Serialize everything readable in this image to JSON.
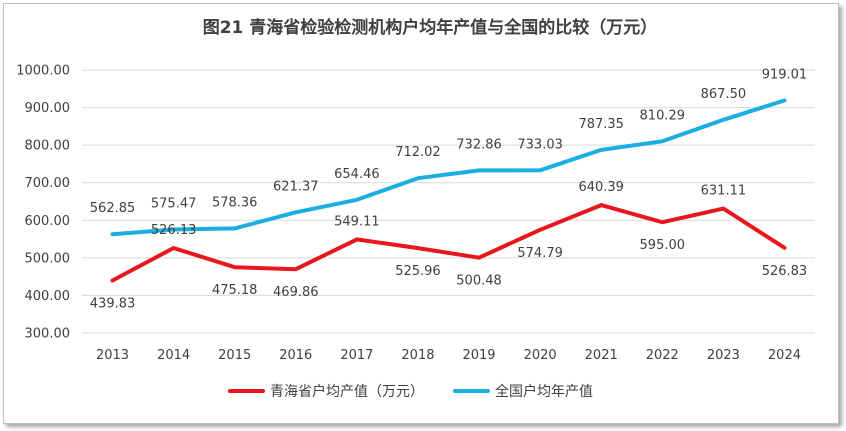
{
  "chart_data": {
    "type": "line",
    "title": "图21 青海省检验检测机构户均年产值与全国的比较（万元）",
    "categories": [
      "2013",
      "2014",
      "2015",
      "2016",
      "2017",
      "2018",
      "2019",
      "2020",
      "2021",
      "2022",
      "2023",
      "2024"
    ],
    "ylim": [
      300,
      1000
    ],
    "yticks": [
      "300.00",
      "400.00",
      "500.00",
      "600.00",
      "700.00",
      "800.00",
      "900.00",
      "1000.00"
    ],
    "grid": "horizontal",
    "legend_position": "bottom",
    "series": [
      {
        "name": "青海省户均产值（万元）",
        "color": "#e8171c",
        "values": [
          439.83,
          526.13,
          475.18,
          469.86,
          549.11,
          525.96,
          500.48,
          574.79,
          640.39,
          595.0,
          631.11,
          526.83
        ],
        "labels": [
          "439.83",
          "526.13",
          "475.18",
          "469.86",
          "549.11",
          "525.96",
          "500.48",
          "574.79",
          "640.39",
          "595.00",
          "631.11",
          "526.83"
        ]
      },
      {
        "name": "全国户均年产值",
        "color": "#1aaee3",
        "values": [
          562.85,
          575.47,
          578.36,
          621.37,
          654.46,
          712.02,
          732.86,
          733.03,
          787.35,
          810.29,
          867.5,
          919.01
        ],
        "labels": [
          "562.85",
          "575.47",
          "578.36",
          "621.37",
          "654.46",
          "712.02",
          "732.86",
          "733.03",
          "787.35",
          "810.29",
          "867.50",
          "919.01"
        ]
      }
    ]
  }
}
